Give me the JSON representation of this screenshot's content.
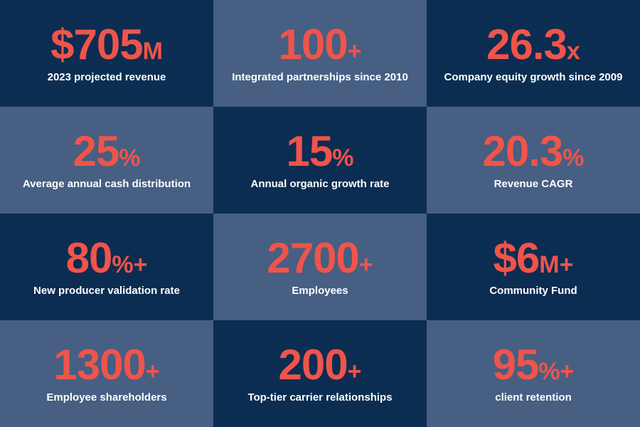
{
  "colors": {
    "dark_tile": "#0c2d52",
    "light_tile": "#465f83",
    "accent": "#f0544a",
    "label_text": "#ffffff"
  },
  "tiles": [
    {
      "value": "$705",
      "suffix": "M",
      "label": "2023 projected revenue",
      "tone": "dark"
    },
    {
      "value": "100",
      "suffix": "+",
      "label": "Integrated partnerships since 2010",
      "tone": "light"
    },
    {
      "value": "26.3",
      "suffix": "x",
      "label": "Company equity growth since 2009",
      "tone": "dark"
    },
    {
      "value": "25",
      "suffix": "%",
      "label": "Average annual cash distribution",
      "tone": "light"
    },
    {
      "value": "15",
      "suffix": "%",
      "label": "Annual organic growth rate",
      "tone": "dark"
    },
    {
      "value": "20.3",
      "suffix": "%",
      "label": "Revenue CAGR",
      "tone": "light"
    },
    {
      "value": "80",
      "suffix": "%+",
      "label": "New producer validation rate",
      "tone": "dark"
    },
    {
      "value": "2700",
      "suffix": "+",
      "label": "Employees",
      "tone": "light"
    },
    {
      "value": "$6",
      "suffix": "M+",
      "label": "Community Fund",
      "tone": "dark"
    },
    {
      "value": "1300",
      "suffix": "+",
      "label": "Employee shareholders",
      "tone": "light"
    },
    {
      "value": "200",
      "suffix": "+",
      "label": "Top-tier carrier relationships",
      "tone": "dark"
    },
    {
      "value": "95",
      "suffix": "%+",
      "label": "client retention",
      "tone": "light"
    }
  ]
}
